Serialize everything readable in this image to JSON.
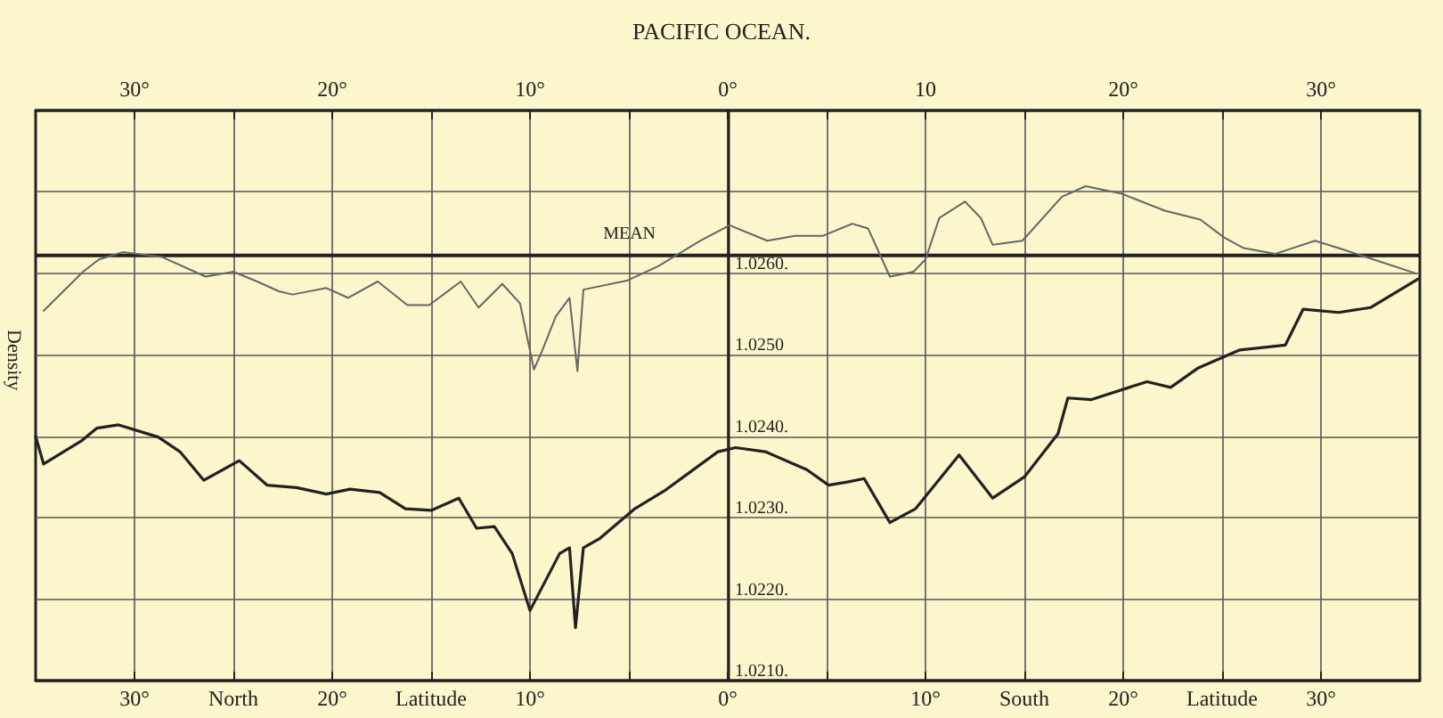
{
  "chart_data": {
    "type": "line",
    "title": "PACIFIC OCEAN.",
    "ylabel": "Density",
    "xlim": [
      35,
      -35
    ],
    "xticks": [
      {
        "value": 30,
        "label": "30°"
      },
      {
        "value": 25,
        "label": "North"
      },
      {
        "value": 20,
        "label": "20°"
      },
      {
        "value": 15,
        "label": "Latitude"
      },
      {
        "value": 10,
        "label": "10°"
      },
      {
        "value": 5,
        "label": null
      },
      {
        "value": 0,
        "label": "0°"
      },
      {
        "value": -5,
        "label": null
      },
      {
        "value": -10,
        "label": "10°"
      },
      {
        "value": -15,
        "label": "South"
      },
      {
        "value": -20,
        "label": "20°"
      },
      {
        "value": -25,
        "label": "Latitude"
      },
      {
        "value": -30,
        "label": "30°"
      }
    ],
    "x2lim": [
      35,
      -35
    ],
    "x2ticks": [
      {
        "value": 30,
        "label": "30°"
      },
      {
        "value": 25,
        "label": null
      },
      {
        "value": 20,
        "label": "20°"
      },
      {
        "value": 15,
        "label": null
      },
      {
        "value": 10,
        "label": "10°"
      },
      {
        "value": 5,
        "label": null
      },
      {
        "value": 0,
        "label": "0°"
      },
      {
        "value": -5,
        "label": null
      },
      {
        "value": -10,
        "label": "10"
      },
      {
        "value": -15,
        "label": null
      },
      {
        "value": -20,
        "label": "20°"
      },
      {
        "value": -25,
        "label": null
      },
      {
        "value": -30,
        "label": "30°"
      }
    ],
    "ylim": [
      1.021,
      1.028
    ],
    "yticks": [
      {
        "value": 1.021,
        "label": "1.0210."
      },
      {
        "value": 1.022,
        "label": "1.0220."
      },
      {
        "value": 1.023,
        "label": "1.0230."
      },
      {
        "value": 1.024,
        "label": "1.0240."
      },
      {
        "value": 1.025,
        "label": "1.0250"
      },
      {
        "value": 1.026,
        "label": "1.0260."
      },
      {
        "value": 1.027,
        "label": null
      }
    ],
    "grid": true,
    "marker": "none",
    "line_style": "solid",
    "ref_lines": [
      {
        "axis": "y",
        "value": 1.02622,
        "label": "MEAN",
        "color": "#222222"
      }
    ],
    "series": [
      {
        "color": "#666666",
        "x": [
          34.6,
          32.6,
          31.8,
          30.6,
          28.6,
          26.4,
          25.0,
          23.8,
          22.7,
          22.0,
          20.3,
          19.2,
          17.7,
          16.2,
          15.1,
          13.5,
          12.6,
          11.4,
          10.5,
          9.8,
          9.4,
          8.7,
          8.0,
          7.6,
          7.3,
          5.1,
          3.5,
          1.4,
          -0.1,
          -2.0,
          -3.4,
          -4.8,
          -6.3,
          -7.1,
          -8.2,
          -9.4,
          -10.0,
          -10.7,
          -12.0,
          -12.8,
          -13.4,
          -14.9,
          -16.9,
          -18.1,
          -19.9,
          -22.1,
          -23.9,
          -25.1,
          -26.1,
          -27.7,
          -29.7,
          -30.9,
          -34.8
        ],
        "values": [
          1.02554,
          1.02602,
          1.02617,
          1.02626,
          1.0262,
          1.02596,
          1.02602,
          1.0259,
          1.02578,
          1.02574,
          1.02582,
          1.0257,
          1.0259,
          1.02561,
          1.02561,
          1.0259,
          1.02558,
          1.02587,
          1.02563,
          1.02482,
          1.02504,
          1.02547,
          1.0257,
          1.0248,
          1.0258,
          1.02591,
          1.02609,
          1.0264,
          1.02659,
          1.0264,
          1.02646,
          1.02646,
          1.02661,
          1.02655,
          1.02596,
          1.02602,
          1.02617,
          1.02668,
          1.02688,
          1.02668,
          1.02635,
          1.0264,
          1.02694,
          1.02707,
          1.02698,
          1.02677,
          1.02666,
          1.02644,
          1.02631,
          1.02624,
          1.0264,
          1.02631,
          1.026
        ]
      },
      {
        "color": "#222222",
        "x": [
          35.0,
          34.6,
          32.7,
          31.9,
          30.8,
          28.8,
          27.7,
          26.5,
          24.7,
          23.3,
          21.8,
          20.3,
          19.1,
          17.6,
          16.3,
          15.0,
          13.6,
          12.7,
          11.8,
          10.9,
          10.0,
          8.5,
          8.0,
          7.7,
          7.3,
          6.5,
          4.7,
          3.2,
          0.5,
          -0.4,
          -1.9,
          -4.0,
          -5.1,
          -6.1,
          -6.9,
          -8.2,
          -9.5,
          -11.7,
          -13.4,
          -15.0,
          -16.7,
          -17.2,
          -18.4,
          -21.2,
          -22.4,
          -23.8,
          -25.9,
          -28.2,
          -29.1,
          -30.9,
          -32.5,
          -34.9
        ],
        "values": [
          1.024,
          1.02366,
          1.02394,
          1.0241,
          1.02414,
          1.02399,
          1.02381,
          1.02346,
          1.0237,
          1.0234,
          1.02337,
          1.02329,
          1.02335,
          1.02331,
          1.02311,
          1.02309,
          1.02324,
          1.02287,
          1.02289,
          1.02256,
          1.02186,
          1.02256,
          1.02263,
          1.02165,
          1.02263,
          1.02274,
          1.02311,
          1.02333,
          1.02381,
          1.02386,
          1.02381,
          1.02359,
          1.0234,
          1.02344,
          1.02348,
          1.02294,
          1.02311,
          1.02377,
          1.02324,
          1.0235,
          1.02403,
          1.02447,
          1.02445,
          1.02467,
          1.0246,
          1.02484,
          1.02506,
          1.02512,
          1.02556,
          1.02552,
          1.02558,
          1.02593
        ]
      }
    ]
  }
}
